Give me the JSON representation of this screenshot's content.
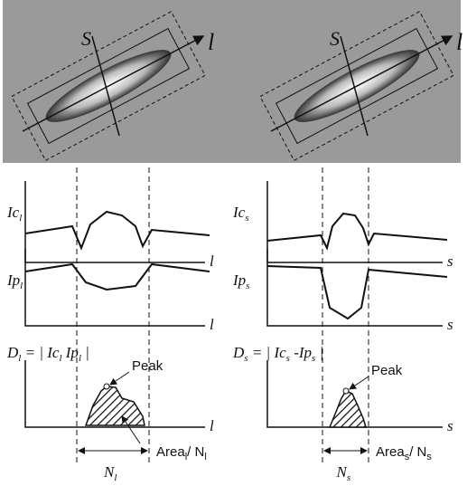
{
  "panels": [
    {
      "image_axes": {
        "long": "l",
        "short": "S"
      },
      "plot1": {
        "label": [
          "Ic",
          "l"
        ],
        "axis": "l"
      },
      "plot2": {
        "label": [
          "Ip",
          "l"
        ],
        "axis": "l"
      },
      "plot3": {
        "label": [
          "D",
          "l",
          " = | Ic",
          "l",
          "  Ip",
          "l",
          " |"
        ],
        "axis": "l",
        "peak": "Peak",
        "area": [
          "Area",
          "l",
          "/ N",
          "l"
        ]
      },
      "width": [
        "N",
        "l"
      ]
    },
    {
      "image_axes": {
        "long": "l",
        "short": "S"
      },
      "plot1": {
        "label": [
          "Ic",
          "s"
        ],
        "axis": "s"
      },
      "plot2": {
        "label": [
          "Ip",
          "s"
        ],
        "axis": "s"
      },
      "plot3": {
        "label": [
          "D",
          "s",
          " = | Ic",
          "s",
          " -Ip",
          "s",
          " |"
        ],
        "axis": "s",
        "peak": "Peak",
        "area": [
          "Area",
          "s",
          "/ N",
          "s"
        ]
      },
      "width": [
        "N",
        "s"
      ]
    }
  ]
}
